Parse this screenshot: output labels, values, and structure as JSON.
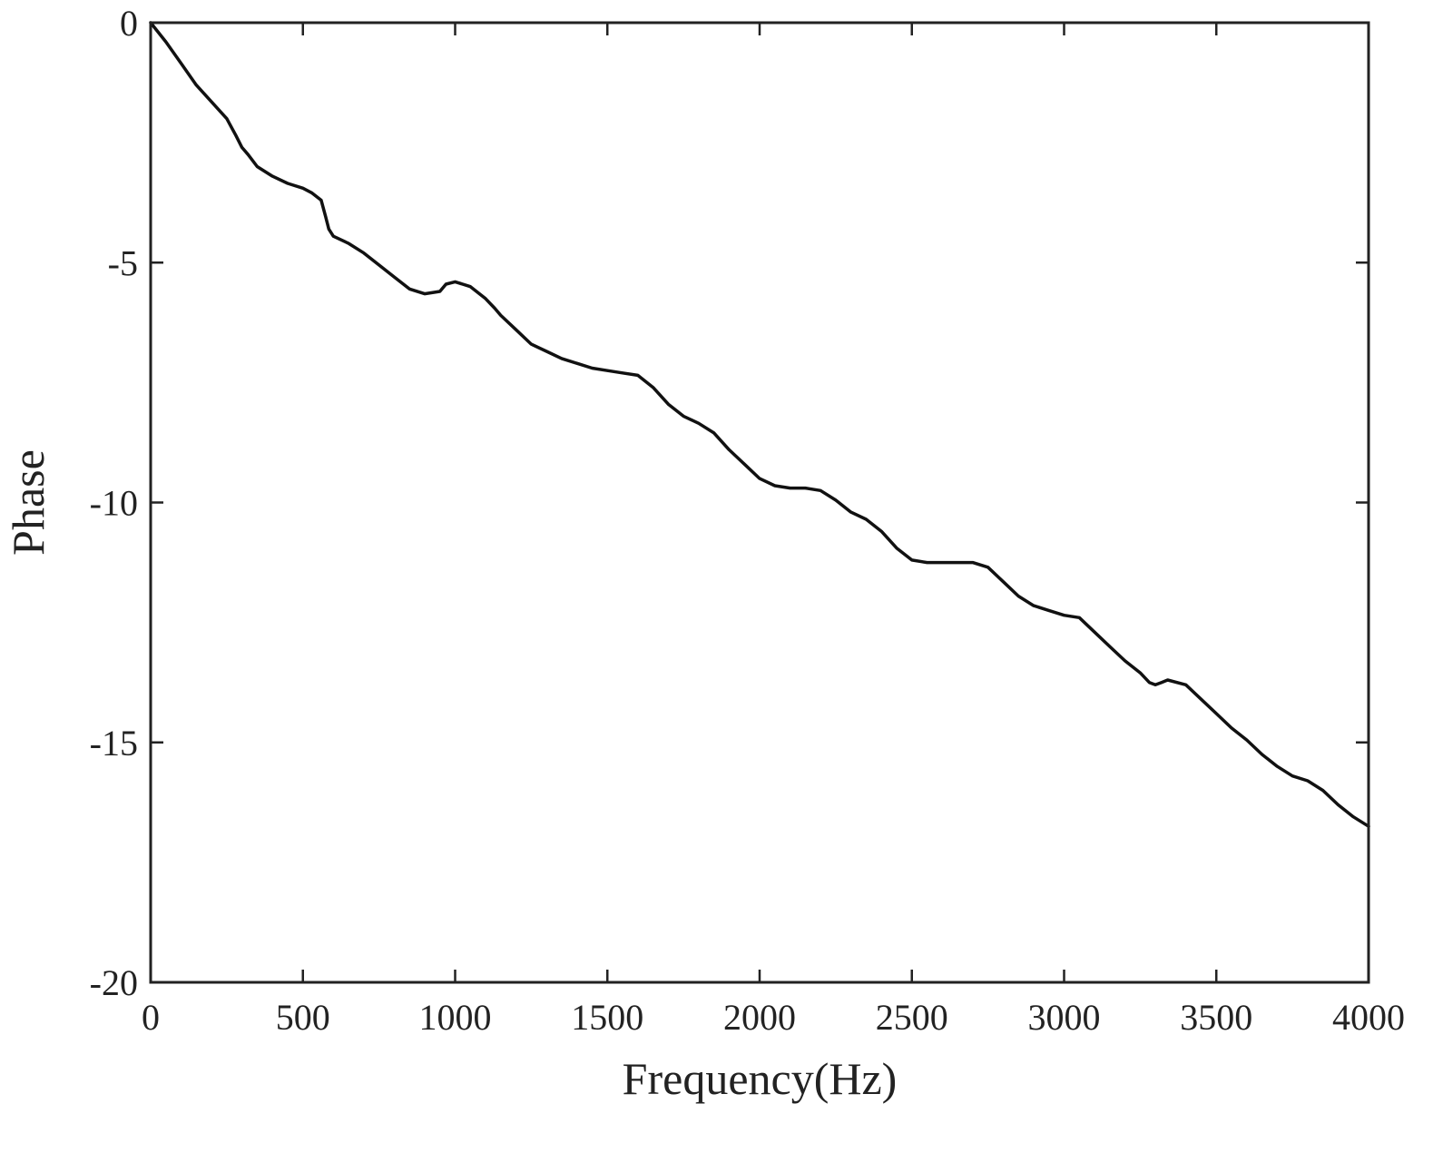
{
  "chart_data": {
    "type": "line",
    "title": "",
    "xlabel": "Frequency(Hz)",
    "ylabel": "Phase",
    "xlim": [
      0,
      4000
    ],
    "ylim": [
      -20,
      0
    ],
    "xticks": [
      0,
      500,
      1000,
      1500,
      2000,
      2500,
      3000,
      3500,
      4000
    ],
    "yticks": [
      0,
      -5,
      -10,
      -15,
      -20
    ],
    "xtick_labels": [
      "0",
      "500",
      "1000",
      "1500",
      "2000",
      "2500",
      "3000",
      "3500",
      "4000"
    ],
    "ytick_labels": [
      "0",
      "-5",
      "-10",
      "-15",
      "-20"
    ],
    "grid": false,
    "line_color": "#111111",
    "series": [
      {
        "x": [
          0,
          50,
          100,
          150,
          200,
          250,
          280,
          300,
          320,
          350,
          400,
          450,
          500,
          530,
          560,
          575,
          585,
          600,
          650,
          700,
          750,
          800,
          850,
          900,
          950,
          970,
          1000,
          1050,
          1100,
          1130,
          1150,
          1200,
          1250,
          1300,
          1350,
          1400,
          1450,
          1500,
          1550,
          1600,
          1650,
          1700,
          1750,
          1800,
          1850,
          1900,
          1950,
          2000,
          2050,
          2100,
          2150,
          2200,
          2250,
          2300,
          2350,
          2400,
          2450,
          2500,
          2550,
          2600,
          2650,
          2700,
          2750,
          2800,
          2850,
          2900,
          2950,
          3000,
          3050,
          3100,
          3150,
          3200,
          3250,
          3280,
          3300,
          3320,
          3340,
          3400,
          3450,
          3500,
          3550,
          3600,
          3650,
          3700,
          3750,
          3800,
          3850,
          3900,
          3950,
          4000
        ],
        "y": [
          0,
          -0.4,
          -0.85,
          -1.3,
          -1.65,
          -2.0,
          -2.35,
          -2.6,
          -2.75,
          -3.0,
          -3.2,
          -3.35,
          -3.45,
          -3.55,
          -3.7,
          -4.05,
          -4.3,
          -4.45,
          -4.6,
          -4.8,
          -5.05,
          -5.3,
          -5.55,
          -5.65,
          -5.6,
          -5.45,
          -5.4,
          -5.5,
          -5.75,
          -5.95,
          -6.1,
          -6.4,
          -6.7,
          -6.85,
          -7.0,
          -7.1,
          -7.2,
          -7.25,
          -7.3,
          -7.35,
          -7.6,
          -7.95,
          -8.2,
          -8.35,
          -8.55,
          -8.9,
          -9.2,
          -9.5,
          -9.65,
          -9.7,
          -9.7,
          -9.75,
          -9.95,
          -10.2,
          -10.35,
          -10.6,
          -10.95,
          -11.2,
          -11.25,
          -11.25,
          -11.25,
          -11.25,
          -11.35,
          -11.65,
          -11.95,
          -12.15,
          -12.25,
          -12.35,
          -12.4,
          -12.7,
          -13.0,
          -13.3,
          -13.55,
          -13.75,
          -13.8,
          -13.75,
          -13.7,
          -13.8,
          -14.1,
          -14.4,
          -14.7,
          -14.95,
          -15.25,
          -15.5,
          -15.7,
          -15.8,
          -16.0,
          -16.3,
          -16.55,
          -16.75
        ]
      }
    ]
  }
}
